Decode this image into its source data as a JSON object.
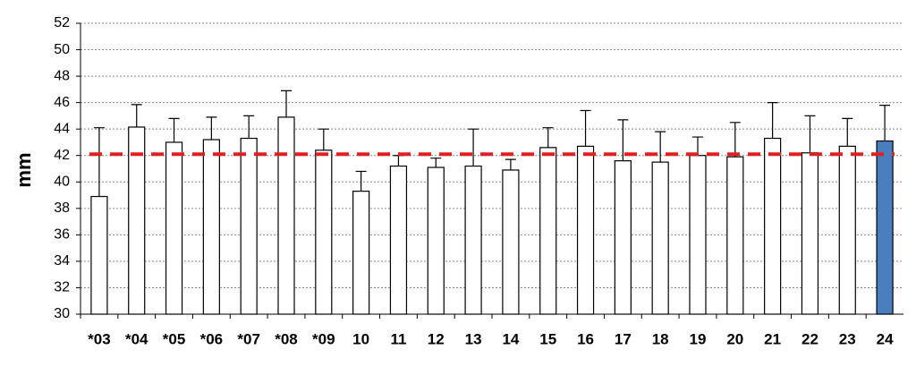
{
  "chart_data": {
    "type": "bar",
    "y_label": "mm",
    "categories": [
      "*03",
      "*04",
      "*05",
      "*06",
      "*07",
      "*08",
      "*09",
      "10",
      "11",
      "12",
      "13",
      "14",
      "15",
      "16",
      "17",
      "18",
      "19",
      "20",
      "21",
      "22",
      "23",
      "24"
    ],
    "values": [
      38.9,
      44.15,
      43.0,
      43.2,
      43.3,
      44.9,
      42.4,
      39.3,
      41.2,
      41.1,
      41.2,
      40.9,
      42.6,
      42.7,
      41.6,
      41.5,
      42.0,
      41.9,
      43.3,
      42.2,
      42.7,
      43.1
    ],
    "errors": [
      5.2,
      1.7,
      1.8,
      1.7,
      1.7,
      2.0,
      1.6,
      1.5,
      0.8,
      0.7,
      2.8,
      0.8,
      1.5,
      2.7,
      3.1,
      2.3,
      1.4,
      2.6,
      2.7,
      2.8,
      2.1,
      2.7
    ],
    "colors": [
      "#ffffff",
      "#ffffff",
      "#ffffff",
      "#ffffff",
      "#ffffff",
      "#ffffff",
      "#ffffff",
      "#ffffff",
      "#ffffff",
      "#ffffff",
      "#ffffff",
      "#ffffff",
      "#ffffff",
      "#ffffff",
      "#ffffff",
      "#ffffff",
      "#ffffff",
      "#ffffff",
      "#ffffff",
      "#ffffff",
      "#ffffff",
      "#4a7ebf"
    ],
    "reference_line": 42.1,
    "reference_color": "#e02020",
    "ylim": [
      30,
      52
    ],
    "yticks": [
      30,
      32,
      34,
      36,
      38,
      40,
      42,
      44,
      46,
      48,
      50,
      52
    ],
    "grid": true
  }
}
